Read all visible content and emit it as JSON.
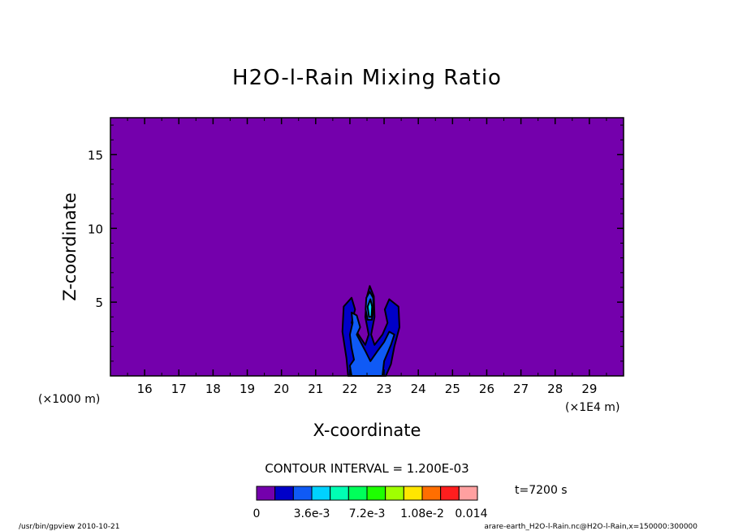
{
  "chart_data": {
    "type": "heatmap",
    "title": "H2O-l-Rain Mixing Ratio",
    "xlabel": "X-coordinate",
    "ylabel": "Z-coordinate",
    "x_unit_left": "(×1000 m)",
    "x_unit_right": "(×1E4 m)",
    "x_ticks": [
      16,
      17,
      18,
      19,
      20,
      21,
      22,
      23,
      24,
      25,
      26,
      27,
      28,
      29
    ],
    "y_ticks": [
      5,
      10,
      15
    ],
    "xlim": [
      15.0,
      30.0
    ],
    "ylim": [
      0.0,
      17.5
    ],
    "contour_interval_text": "CONTOUR INTERVAL = 1.200E-03",
    "time_text": "t=7200 s",
    "colorbar": {
      "colors": [
        "#7400ac",
        "#0000c8",
        "#0f5af5",
        "#00d2ff",
        "#00ffb4",
        "#00ff5a",
        "#1eff00",
        "#a0ff00",
        "#ffe600",
        "#ff6e00",
        "#ff1e1e",
        "#ffa0a0"
      ],
      "labels": [
        "0",
        "3.6e-3",
        "7.2e-3",
        "1.08e-2",
        "0.014"
      ],
      "label_values": [
        0,
        0.0036,
        0.0072,
        0.0108,
        0.014
      ],
      "range": [
        0,
        0.0144
      ]
    },
    "features": [
      {
        "name": "rain cell",
        "x_range": [
          21.8,
          23.5
        ],
        "z_range": [
          0,
          6.1
        ],
        "max_level_color": "#00d2ff"
      }
    ]
  },
  "footer": {
    "left": "/usr/bin/gpview   2010-10-21",
    "right": "arare-earth_H2O-l-Rain.nc@H2O-l-Rain,x=150000:300000"
  }
}
